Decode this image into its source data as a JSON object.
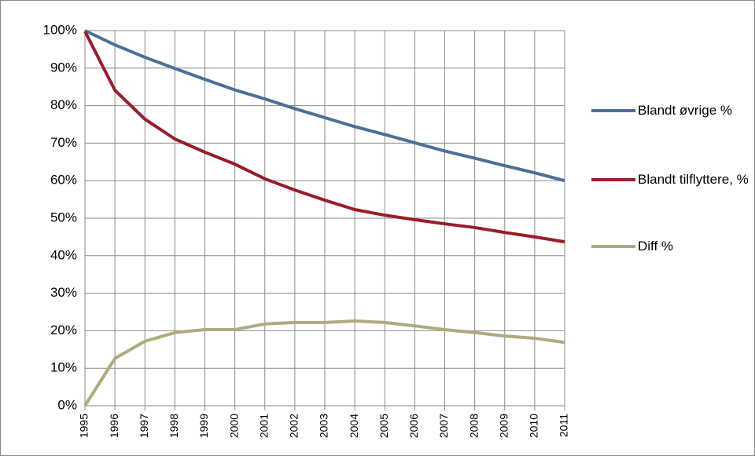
{
  "chart_data": {
    "type": "line",
    "x": [
      1995,
      1996,
      1997,
      1998,
      1999,
      2000,
      2001,
      2002,
      2003,
      2004,
      2005,
      2006,
      2007,
      2008,
      2009,
      2010,
      2011
    ],
    "xlim": [
      1995,
      2011
    ],
    "xticks": [
      1995,
      1996,
      1997,
      1998,
      1999,
      2000,
      2001,
      2002,
      2003,
      2004,
      2005,
      2006,
      2007,
      2008,
      2009,
      2010,
      2011
    ],
    "ylim": [
      0,
      100
    ],
    "yticks": [
      {
        "value": 0,
        "label": "0%"
      },
      {
        "value": 10,
        "label": "10%"
      },
      {
        "value": 20,
        "label": "20%"
      },
      {
        "value": 30,
        "label": "30%"
      },
      {
        "value": 40,
        "label": "40%"
      },
      {
        "value": 50,
        "label": "50%"
      },
      {
        "value": 60,
        "label": "60%"
      },
      {
        "value": 70,
        "label": "70%"
      },
      {
        "value": 80,
        "label": "80%"
      },
      {
        "value": 90,
        "label": "90%"
      },
      {
        "value": 100,
        "label": "100%"
      }
    ],
    "grid": true,
    "legend": "right",
    "series": [
      {
        "name": "Blandt øvrige %",
        "color": "#4a7099",
        "values": [
          100,
          96.2,
          92.9,
          89.9,
          87,
          84.2,
          81.8,
          79.2,
          76.8,
          74.4,
          72.3,
          70.1,
          67.9,
          66,
          64,
          62.1,
          60
        ]
      },
      {
        "name": "Blandt tilflyttere, %",
        "color": "#9b1c2b",
        "values": [
          99.8,
          84.1,
          76.4,
          71.1,
          67.6,
          64.4,
          60.5,
          57.5,
          54.8,
          52.3,
          50.8,
          49.6,
          48.5,
          47.5,
          46.2,
          45,
          43.7
        ]
      },
      {
        "name": "Diff %",
        "color": "#aeac7e",
        "values": [
          0,
          12.6,
          17.2,
          19.5,
          20.3,
          20.3,
          21.8,
          22.2,
          22.2,
          22.6,
          22.2,
          21.3,
          20.3,
          19.5,
          18.6,
          18,
          16.9
        ]
      }
    ]
  }
}
